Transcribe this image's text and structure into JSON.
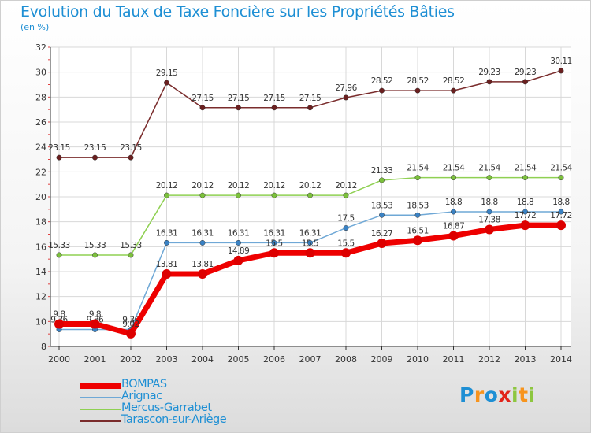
{
  "title": "Evolution du Taux de Taxe Foncière sur les Propriétés Bâties",
  "subtitle": "(en %)",
  "logo": {
    "text": "Proxiti",
    "letters": [
      "P",
      "r",
      "o",
      "x",
      "i",
      "t",
      "i"
    ],
    "colors": [
      "#1e8fd4",
      "#f7941d",
      "#1e8fd4",
      "#e2231a",
      "#8dc63f",
      "#f7941d",
      "#8dc63f"
    ]
  },
  "chart_data": {
    "type": "line",
    "title": "Evolution du Taux de Taxe Foncière sur les Propriétés Bâties",
    "ylabel": "(en %)",
    "x": [
      "2000",
      "2001",
      "2002",
      "2003",
      "2004",
      "2005",
      "2006",
      "2007",
      "2008",
      "2009",
      "2010",
      "2011",
      "2012",
      "2013",
      "2014"
    ],
    "ylim": [
      8,
      32
    ],
    "yticks": [
      8,
      10,
      12,
      14,
      16,
      18,
      20,
      22,
      24,
      26,
      28,
      30,
      32
    ],
    "grid": true,
    "series": [
      {
        "name": "Tarascon-sur-Ariège",
        "color": "#7a2c2c",
        "marker": "#6b1f1f",
        "values": [
          23.15,
          23.15,
          23.15,
          29.15,
          27.15,
          27.15,
          27.15,
          27.15,
          27.96,
          28.52,
          28.52,
          28.52,
          29.23,
          29.23,
          30.11
        ],
        "labels": [
          "23.15",
          "23.15",
          "23.15",
          "29.15",
          "27.15",
          "27.15",
          "27.15",
          "27.15",
          "27.96",
          "28.52",
          "28.52",
          "28.52",
          "29.23",
          "29.23",
          "30.11"
        ]
      },
      {
        "name": "Mercus-Garrabet",
        "color": "#8fd052",
        "marker": "#7cc13c",
        "values": [
          15.33,
          15.33,
          15.33,
          20.12,
          20.12,
          20.12,
          20.12,
          20.12,
          20.12,
          21.33,
          21.54,
          21.54,
          21.54,
          21.54,
          21.54
        ],
        "labels": [
          "15.33",
          "15.33",
          "15.33",
          "20.12",
          "20.12",
          "20.12",
          "20.12",
          "20.12",
          "20.12",
          "21.33",
          "21.54",
          "21.54",
          "21.54",
          "21.54",
          "21.54"
        ]
      },
      {
        "name": "Arignac",
        "color": "#6fa8d6",
        "marker": "#3a82c4",
        "values": [
          9.36,
          9.36,
          9.36,
          16.31,
          16.31,
          16.31,
          16.31,
          16.31,
          17.5,
          18.53,
          18.53,
          18.8,
          18.8,
          18.8,
          18.8
        ],
        "labels": [
          "9.36",
          "9.36",
          "9.36",
          "16.31",
          "16.31",
          "16.31",
          "16.31",
          "16.31",
          "17.5",
          "18.53",
          "18.53",
          "18.8",
          "18.8",
          "18.8",
          "18.8"
        ]
      },
      {
        "name": "BOMPAS",
        "color": "#ee0000",
        "marker": "#dd0000",
        "values": [
          9.8,
          9.8,
          9.02,
          13.81,
          13.81,
          14.89,
          15.5,
          15.5,
          15.5,
          16.27,
          16.51,
          16.87,
          17.38,
          17.72,
          17.72
        ],
        "labels": [
          "9.8",
          "9.8",
          "9.02",
          "13.81",
          "13.81",
          "14.89",
          "15.5",
          "15.5",
          "15.5",
          "16.27",
          "16.51",
          "16.87",
          "17.38",
          "17.72",
          "17.72"
        ]
      }
    ]
  },
  "legend": [
    {
      "name": "BOMPAS",
      "color": "#ee0000"
    },
    {
      "name": "Arignac",
      "color": "#6fa8d6"
    },
    {
      "name": "Mercus-Garrabet",
      "color": "#8fd052"
    },
    {
      "name": "Tarascon-sur-Ariège",
      "color": "#7a2c2c"
    }
  ]
}
